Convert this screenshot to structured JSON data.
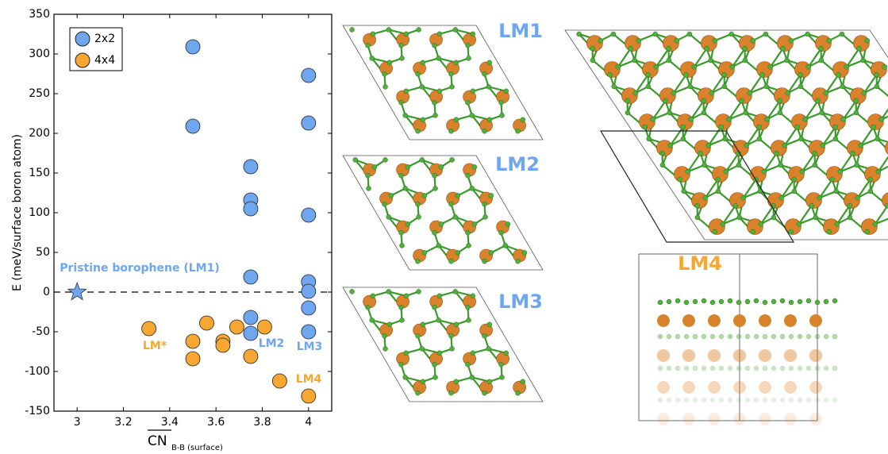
{
  "chart_data": {
    "type": "scatter",
    "ylabel": "E (meV/surface boron atom)",
    "xlabel": "CN",
    "xlabel_sub": "B-B (surface)",
    "xlim": [
      2.9,
      4.1
    ],
    "xticks": [
      3,
      3.2,
      3.4,
      3.6,
      3.8,
      4
    ],
    "ylim": [
      -150,
      350
    ],
    "yticks": [
      -150,
      -100,
      -50,
      0,
      50,
      100,
      150,
      200,
      250,
      300,
      350
    ],
    "hline": 0,
    "legend": "upper-left",
    "series": [
      {
        "name": "2x2",
        "color": "#6ea6ef",
        "x": [
          3.5,
          3.5,
          3.75,
          3.75,
          3.75,
          3.75,
          3.75,
          3.75,
          4,
          4,
          4,
          4,
          4,
          4,
          4
        ],
        "values": [
          309,
          209,
          158,
          116,
          105,
          19,
          -32,
          -52,
          273,
          213,
          97,
          13,
          1,
          -20,
          -50
        ]
      },
      {
        "name": "4x4",
        "color": "#f6a631",
        "x": [
          3.31,
          3.5,
          3.5,
          3.56,
          3.63,
          3.63,
          3.69,
          3.75,
          3.81,
          3.875,
          4
        ],
        "values": [
          -46,
          -62,
          -84,
          -39,
          -62,
          -67,
          -44,
          -81,
          -44,
          -112,
          -131
        ]
      }
    ],
    "highlight": {
      "x": 3,
      "y": 0,
      "color": "#6ea6ef"
    },
    "annotations": [
      {
        "text": "Pristine borophene (LM1)",
        "color": "#6ea6ef"
      },
      {
        "text": "LM*",
        "color": "#f6a631"
      },
      {
        "text": "LM2",
        "color": "#6ea6ef"
      },
      {
        "text": "LM3",
        "color": "#6ea6ef"
      },
      {
        "text": "LM4",
        "color": "#f6a631"
      }
    ],
    "structure_labels": [
      {
        "text": "LM1",
        "color": "#6ea6ef"
      },
      {
        "text": "LM2",
        "color": "#6ea6ef"
      },
      {
        "text": "LM3",
        "color": "#6ea6ef"
      },
      {
        "text": "LM4",
        "color": "#f6a631"
      }
    ]
  }
}
